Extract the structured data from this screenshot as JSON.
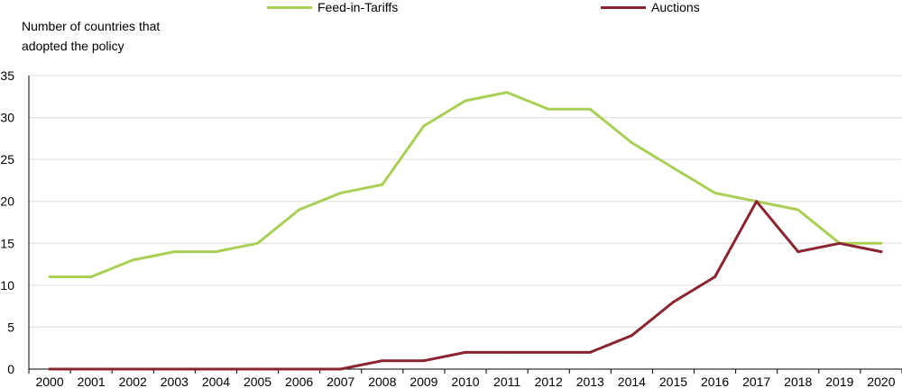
{
  "chart_data": {
    "type": "line",
    "ylabel": "Number of countries that adopted the policy",
    "xlabel": "",
    "ylim": [
      0,
      35
    ],
    "yticks": [
      0,
      5,
      10,
      15,
      20,
      25,
      30,
      35
    ],
    "grid": "horizontal",
    "legend_position": "top",
    "x": [
      "2000",
      "2001",
      "2002",
      "2003",
      "2004",
      "2005",
      "2006",
      "2007",
      "2008",
      "2009",
      "2010",
      "2011",
      "2012",
      "2013",
      "2014",
      "2015",
      "2016",
      "2017",
      "2018",
      "2019",
      "2020"
    ],
    "series": [
      {
        "name": "Feed-in-Tariffs",
        "color": "#a9cf54",
        "values": [
          11,
          11,
          13,
          14,
          14,
          15,
          19,
          21,
          22,
          29,
          32,
          33,
          31,
          31,
          27,
          24,
          21,
          20,
          19,
          15,
          15
        ]
      },
      {
        "name": "Auctions",
        "color": "#8b2331",
        "values": [
          0,
          0,
          0,
          0,
          0,
          0,
          0,
          0,
          1,
          1,
          2,
          2,
          2,
          2,
          4,
          8,
          11,
          20,
          14,
          15,
          14
        ]
      }
    ]
  }
}
